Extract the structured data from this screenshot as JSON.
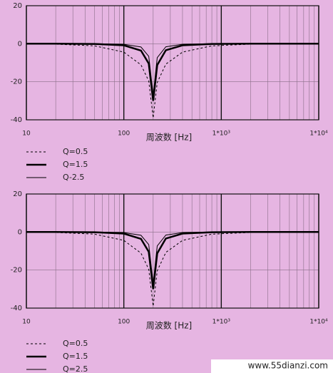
{
  "chart_data": [
    {
      "type": "line",
      "xscale": "log",
      "grid": true,
      "x_label": "周波数 [Hz]",
      "x": [
        10,
        20,
        50,
        100,
        150,
        180,
        200,
        220,
        270,
        400,
        800,
        2000,
        5000,
        10000
      ],
      "xlim": [
        10,
        10000
      ],
      "xticks": [
        10,
        100,
        {
          "value": 1000,
          "label": "1*10³"
        },
        {
          "value": 10000,
          "label": "1*10⁴"
        }
      ],
      "xminorticks": [
        20,
        30,
        40,
        50,
        60,
        70,
        80,
        90,
        200,
        300,
        400,
        500,
        600,
        700,
        800,
        900,
        2000,
        3000,
        4000,
        5000,
        6000,
        7000,
        8000,
        9000
      ],
      "ylim": [
        -40,
        20
      ],
      "yticks": [
        -40,
        -20,
        0,
        20
      ],
      "series": [
        {
          "name": "Q=0.5",
          "color": "#000000",
          "style": "dashed",
          "values": [
            0,
            -0.2,
            -1.1,
            -4.4,
            -11.1,
            -19.6,
            -39,
            -20.4,
            -10.7,
            -4.4,
            -1.1,
            -0.2,
            0,
            0
          ]
        },
        {
          "name": "Q=1.5",
          "color": "#000000",
          "style": "thick",
          "values": [
            0,
            0,
            -0.1,
            -0.8,
            -3.6,
            -10.4,
            -30,
            -11.2,
            -3.4,
            -0.8,
            -0.1,
            0,
            0,
            0
          ]
        },
        {
          "name": "Q-2.5",
          "color": "#000000",
          "style": "thin",
          "values": [
            0,
            0,
            0,
            -0.3,
            -1.7,
            -6.6,
            -27,
            -7.3,
            -1.6,
            -0.3,
            0,
            0,
            0,
            0
          ]
        }
      ]
    },
    {
      "type": "line",
      "xscale": "log",
      "grid": true,
      "x_label": "周波数 [Hz]",
      "x": [
        10,
        20,
        50,
        100,
        150,
        180,
        200,
        220,
        270,
        400,
        800,
        2000,
        5000,
        10000
      ],
      "xlim": [
        10,
        10000
      ],
      "xticks": [
        10,
        100,
        {
          "value": 1000,
          "label": "1*10³"
        },
        {
          "value": 10000,
          "label": "1*10⁴"
        }
      ],
      "xminorticks": [
        20,
        30,
        40,
        50,
        60,
        70,
        80,
        90,
        200,
        300,
        400,
        500,
        600,
        700,
        800,
        900,
        2000,
        3000,
        4000,
        5000,
        6000,
        7000,
        8000,
        9000
      ],
      "ylim": [
        -40,
        20
      ],
      "yticks": [
        -40,
        -20,
        0,
        20
      ],
      "series": [
        {
          "name": "Q=0.5",
          "color": "#000000",
          "style": "dashed",
          "values": [
            0,
            -0.2,
            -1.1,
            -4.4,
            -11.1,
            -19.6,
            -39,
            -20.4,
            -10.7,
            -4.4,
            -1.1,
            -0.2,
            0,
            0
          ]
        },
        {
          "name": "Q=1.5",
          "color": "#000000",
          "style": "thick",
          "values": [
            0,
            0,
            -0.1,
            -0.8,
            -3.6,
            -10.4,
            -30,
            -11.2,
            -3.4,
            -0.8,
            -0.1,
            0,
            0,
            0
          ]
        },
        {
          "name": "Q=2.5",
          "color": "#000000",
          "style": "thin",
          "values": [
            0,
            0,
            0,
            -0.3,
            -1.7,
            -6.6,
            -27,
            -7.3,
            -1.6,
            -0.3,
            0,
            0,
            0,
            0
          ]
        }
      ]
    }
  ],
  "watermark": "www.55dianzi.com"
}
